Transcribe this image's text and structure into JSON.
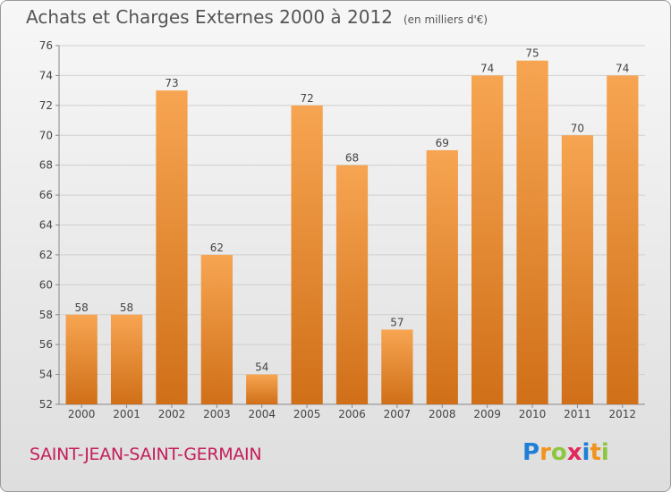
{
  "header": {
    "title": "Achats et Charges Externes 2000 à 2012",
    "unit": "(en milliers d'€)"
  },
  "footer": {
    "commune": "SAINT-JEAN-SAINT-GERMAIN",
    "logo_text": "Proxiti",
    "logo_letters": [
      {
        "char": "P",
        "color": "#1f7fd6"
      },
      {
        "char": "r",
        "color": "#f0941d"
      },
      {
        "char": "o",
        "color": "#8dc63f"
      },
      {
        "char": "x",
        "color": "#e0285a"
      },
      {
        "char": "i",
        "color": "#1f7fd6"
      },
      {
        "char": "t",
        "color": "#f0941d"
      },
      {
        "char": "i",
        "color": "#8dc63f"
      }
    ]
  },
  "colors": {
    "bar_light": "#f7a552",
    "bar_dark": "#d06f18",
    "grid": "#cfcfcf",
    "axis_text": "#444444"
  },
  "chart_data": {
    "type": "bar",
    "title": "Achats et Charges Externes 2000 à 2012",
    "categories": [
      "2000",
      "2001",
      "2002",
      "2003",
      "2004",
      "2005",
      "2006",
      "2007",
      "2008",
      "2009",
      "2010",
      "2011",
      "2012"
    ],
    "values": [
      58,
      58,
      73,
      62,
      54,
      72,
      68,
      57,
      69,
      74,
      75,
      70,
      74
    ],
    "ylim": [
      52,
      76
    ],
    "yticks": [
      52,
      54,
      56,
      58,
      60,
      62,
      64,
      66,
      68,
      70,
      72,
      74,
      76
    ],
    "grid": true,
    "data_labels": true
  }
}
